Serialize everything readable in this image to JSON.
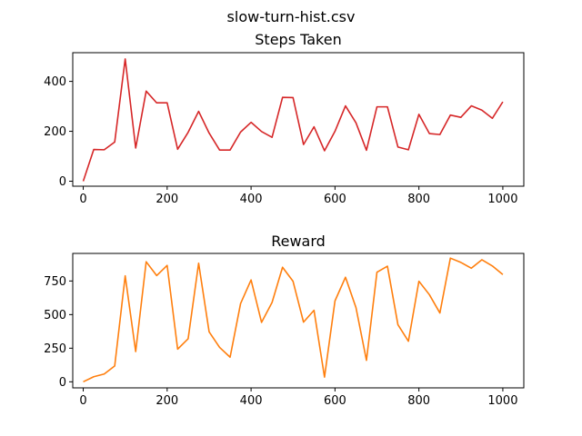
{
  "figure": {
    "suptitle": "slow-turn-hist.csv"
  },
  "chart_data": [
    {
      "type": "line",
      "title": "Steps Taken",
      "xlabel": "",
      "ylabel": "",
      "xlim": [
        -25,
        1050
      ],
      "ylim": [
        -20,
        515
      ],
      "xticks": [
        0,
        200,
        400,
        600,
        800,
        1000
      ],
      "yticks": [
        0,
        200,
        400
      ],
      "grid": false,
      "series": [
        {
          "color": "#d62728",
          "x": [
            0,
            25,
            50,
            75,
            100,
            125,
            150,
            175,
            200,
            225,
            250,
            275,
            300,
            325,
            350,
            375,
            400,
            425,
            450,
            475,
            500,
            525,
            550,
            575,
            600,
            625,
            650,
            675,
            700,
            725,
            750,
            775,
            800,
            825,
            850,
            875,
            900,
            925,
            950,
            975,
            1000
          ],
          "y": [
            0,
            127,
            126,
            157,
            490,
            133,
            361,
            314,
            314,
            128,
            196,
            280,
            193,
            125,
            125,
            197,
            236,
            199,
            176,
            336,
            335,
            147,
            218,
            122,
            200,
            302,
            234,
            124,
            298,
            298,
            137,
            126,
            268,
            191,
            187,
            265,
            256,
            302,
            285,
            252,
            318
          ]
        }
      ]
    },
    {
      "type": "line",
      "title": "Reward",
      "xlabel": "",
      "ylabel": "",
      "xlim": [
        -25,
        1050
      ],
      "ylim": [
        -45,
        955
      ],
      "xticks": [
        0,
        200,
        400,
        600,
        800,
        1000
      ],
      "yticks": [
        0,
        250,
        500,
        750
      ],
      "grid": false,
      "series": [
        {
          "color": "#ff7f0e",
          "x": [
            0,
            25,
            50,
            75,
            100,
            125,
            150,
            175,
            200,
            225,
            250,
            275,
            300,
            325,
            350,
            375,
            400,
            425,
            450,
            475,
            500,
            525,
            550,
            575,
            600,
            625,
            650,
            675,
            700,
            725,
            750,
            775,
            800,
            825,
            850,
            875,
            900,
            925,
            950,
            975,
            1000
          ],
          "y": [
            0,
            38,
            58,
            118,
            788,
            225,
            893,
            790,
            866,
            243,
            320,
            882,
            372,
            256,
            183,
            582,
            758,
            442,
            590,
            852,
            748,
            444,
            532,
            35,
            602,
            778,
            552,
            160,
            815,
            860,
            425,
            302,
            748,
            648,
            512,
            920,
            888,
            845,
            908,
            862,
            798
          ]
        }
      ]
    }
  ]
}
